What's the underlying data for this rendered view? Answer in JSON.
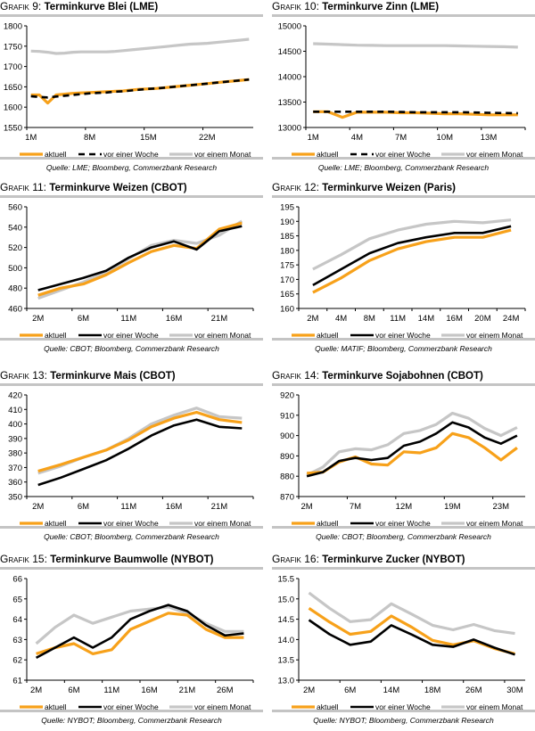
{
  "colors": {
    "aktuell": "#f7a11a",
    "vor_einer_woche": "#000000",
    "vor_einem_monat": "#c6c6c6",
    "rule": "#c4c4c4"
  },
  "chart_data": [
    {
      "id": "g9",
      "type": "line",
      "label": "Grafik 9:",
      "title": "Terminkurve Blei (LME)",
      "source": "Quelle: LME; Bloomberg, Commerzbank Research",
      "ylim": [
        1550,
        1800
      ],
      "yticks": [
        1550,
        1600,
        1650,
        1700,
        1750,
        1800
      ],
      "ytick_labels": [
        "1550",
        "1600",
        "1650",
        "1700",
        "1750",
        "1800"
      ],
      "tick_every": 7,
      "categories": [
        "1M",
        "",
        "",
        "",
        "",
        "",
        "",
        "8M",
        "",
        "",
        "",
        "",
        "",
        "",
        "15M",
        "",
        "",
        "",
        "",
        "",
        "",
        "22M",
        "",
        "",
        "",
        "",
        ""
      ],
      "week_dashed": true,
      "legend": "bottom",
      "series": [
        {
          "name": "aktuell",
          "values": [
            1630,
            1630,
            1610,
            1630,
            1632,
            1634,
            1635,
            1636,
            1637,
            1638,
            1639,
            1640,
            1642,
            1644,
            1645,
            1646,
            1648,
            1650,
            1652,
            1654,
            1656,
            1658,
            1660,
            1662,
            1664,
            1666,
            1668
          ]
        },
        {
          "name": "vor einer Woche",
          "values": [
            1627,
            1625,
            1624,
            1626,
            1628,
            1630,
            1632,
            1634,
            1635,
            1636,
            1638,
            1639,
            1641,
            1643,
            1645,
            1646,
            1648,
            1650,
            1652,
            1654,
            1656,
            1658,
            1660,
            1662,
            1664,
            1666,
            1668
          ]
        },
        {
          "name": "vor einem Monat",
          "values": [
            1738,
            1737,
            1735,
            1732,
            1733,
            1735,
            1736,
            1736,
            1736,
            1736,
            1737,
            1739,
            1741,
            1743,
            1745,
            1747,
            1749,
            1751,
            1753,
            1755,
            1756,
            1757,
            1759,
            1761,
            1763,
            1765,
            1767
          ]
        }
      ]
    },
    {
      "id": "g10",
      "type": "line",
      "label": "Grafik 10:",
      "title": "Terminkurve Zinn (LME)",
      "source": "Quelle: LME; Bloomberg, Commerzbank Research",
      "ylim": [
        13000,
        15000
      ],
      "yticks": [
        13000,
        13500,
        14000,
        14500,
        15000
      ],
      "ytick_labels": [
        "13000",
        "13500",
        "14000",
        "14500",
        "15000"
      ],
      "tick_every": 3,
      "categories": [
        "1M",
        "",
        "",
        "4M",
        "",
        "",
        "7M",
        "",
        "",
        "10M",
        "",
        "",
        "13M",
        "",
        ""
      ],
      "week_dashed": true,
      "legend": "bottom",
      "series": [
        {
          "name": "aktuell",
          "values": [
            13310,
            13310,
            13200,
            13300,
            13300,
            13300,
            13290,
            13290,
            13280,
            13270,
            13270,
            13260,
            13250,
            13250,
            13250
          ]
        },
        {
          "name": "vor einer Woche",
          "values": [
            13310,
            13310,
            13310,
            13310,
            13310,
            13310,
            13305,
            13300,
            13300,
            13300,
            13300,
            13295,
            13290,
            13285,
            13280
          ]
        },
        {
          "name": "vor einem Monat",
          "values": [
            14650,
            14640,
            14630,
            14620,
            14615,
            14610,
            14610,
            14610,
            14610,
            14610,
            14605,
            14600,
            14595,
            14590,
            14580
          ]
        }
      ]
    },
    {
      "id": "g11",
      "type": "line",
      "label": "Grafik 11:",
      "title": "Terminkurve Weizen (CBOT)",
      "source": "Quelle: CBOT; Bloomberg, Commerzbank Research",
      "ylim": [
        460,
        560
      ],
      "yticks": [
        460,
        480,
        500,
        520,
        540,
        560
      ],
      "ytick_labels": [
        "460",
        "480",
        "500",
        "520",
        "540",
        "560"
      ],
      "tick_every": 2,
      "categories": [
        "2M",
        "",
        "6M",
        "",
        "11M",
        "",
        "16M",
        "",
        "21M",
        ""
      ],
      "week_dashed": false,
      "legend": "bottom",
      "series": [
        {
          "name": "aktuell",
          "values": [
            473,
            480,
            484,
            493,
            505,
            516,
            522,
            519,
            538,
            544
          ]
        },
        {
          "name": "vor einer Woche",
          "values": [
            478,
            484,
            490,
            497,
            510,
            520,
            526,
            518,
            536,
            541
          ]
        },
        {
          "name": "vor einem Monat",
          "values": [
            470,
            478,
            486,
            495,
            509,
            522,
            527,
            524,
            532,
            546
          ]
        }
      ]
    },
    {
      "id": "g12",
      "type": "line",
      "label": "Grafik 12:",
      "title": "Terminkurve Weizen (Paris)",
      "source": "Quelle: MATIF; Bloomberg, Commerzbank Research",
      "ylim": [
        160,
        195
      ],
      "yticks": [
        160,
        165,
        170,
        175,
        180,
        185,
        190,
        195
      ],
      "ytick_labels": [
        "160",
        "165",
        "170",
        "175",
        "180",
        "185",
        "190",
        "195"
      ],
      "tick_every": 1,
      "categories": [
        "2M",
        "4M",
        "8M",
        "11M",
        "14M",
        "16M",
        "20M",
        "24M"
      ],
      "week_dashed": false,
      "legend": "bottom",
      "series": [
        {
          "name": "aktuell",
          "values": [
            165.5,
            170.5,
            176.5,
            180.5,
            183,
            184.5,
            184.5,
            187
          ]
        },
        {
          "name": "vor einer Woche",
          "values": [
            168,
            173.5,
            179,
            182.5,
            184.5,
            186,
            186,
            188.3
          ]
        },
        {
          "name": "vor einem Monat",
          "values": [
            173.5,
            178.5,
            184,
            187,
            189,
            190,
            189.5,
            190.5
          ]
        }
      ]
    },
    {
      "id": "g13",
      "type": "line",
      "label": "Grafik 13:",
      "title": "Terminkurve Mais (CBOT)",
      "source": "Quelle: CBOT; Bloomberg, Commerzbank Research",
      "ylim": [
        350,
        420
      ],
      "yticks": [
        350,
        360,
        370,
        380,
        390,
        400,
        410,
        420
      ],
      "ytick_labels": [
        "350",
        "360",
        "370",
        "380",
        "390",
        "400",
        "410",
        "420"
      ],
      "tick_every": 2,
      "categories": [
        "2M",
        "",
        "6M",
        "",
        "11M",
        "",
        "16M",
        "",
        "21M",
        ""
      ],
      "week_dashed": false,
      "legend": "bottom",
      "series": [
        {
          "name": "aktuell",
          "values": [
            367.5,
            372,
            377,
            382,
            389,
            398,
            404,
            408,
            403,
            401
          ]
        },
        {
          "name": "vor einer Woche",
          "values": [
            358,
            363,
            369,
            375,
            383,
            392,
            399,
            403,
            398,
            397
          ]
        },
        {
          "name": "vor einem Monat",
          "values": [
            366,
            371,
            377,
            382,
            390,
            400,
            406,
            411,
            405,
            404
          ]
        }
      ]
    },
    {
      "id": "g14",
      "type": "line",
      "label": "Grafik 14:",
      "title": "Terminkurve Sojabohnen (CBOT)",
      "source": "Quelle: CBOT; Bloomberg, Commerzbank Research",
      "ylim": [
        870,
        920
      ],
      "yticks": [
        870,
        880,
        890,
        900,
        910,
        920
      ],
      "ytick_labels": [
        "870",
        "880",
        "890",
        "900",
        "910",
        "920"
      ],
      "tick_every": 3,
      "categories": [
        "2M",
        "",
        "",
        "7M",
        "",
        "",
        "12M",
        "",
        "",
        "19M",
        "",
        "",
        "23M",
        ""
      ],
      "week_dashed": false,
      "legend": "bottom",
      "series": [
        {
          "name": "aktuell",
          "values": [
            881.5,
            882,
            887,
            889.5,
            886,
            885.5,
            892,
            891.5,
            894,
            901,
            899,
            894,
            888,
            894
          ]
        },
        {
          "name": "vor einer Woche",
          "values": [
            880,
            882,
            887.5,
            889,
            888,
            889,
            895,
            897,
            901,
            906.5,
            904,
            899,
            896,
            900
          ]
        },
        {
          "name": "vor einem Monat",
          "values": [
            880.5,
            884.5,
            892,
            893.5,
            893,
            895.5,
            901,
            902.5,
            905.5,
            911,
            908.5,
            903.5,
            900,
            904
          ]
        }
      ]
    },
    {
      "id": "g15",
      "type": "line",
      "label": "Grafik 15:",
      "title": "Terminkurve Baumwolle (NYBOT)",
      "source": "Quelle: NYBOT; Bloomberg, Commerzbank Research",
      "ylim": [
        61,
        66
      ],
      "yticks": [
        61,
        62,
        63,
        64,
        65,
        66
      ],
      "ytick_labels": [
        "61",
        "62",
        "63",
        "64",
        "65",
        "66"
      ],
      "tick_every": 2,
      "categories": [
        "2M",
        "",
        "6M",
        "",
        "11M",
        "",
        "16M",
        "",
        "21M",
        "",
        "26M",
        ""
      ],
      "week_dashed": false,
      "legend": "bottom",
      "series": [
        {
          "name": "aktuell",
          "values": [
            62.3,
            62.6,
            62.8,
            62.3,
            62.5,
            63.5,
            63.9,
            64.3,
            64.2,
            63.5,
            63.1,
            63.1
          ]
        },
        {
          "name": "vor einer Woche",
          "values": [
            62.1,
            62.6,
            63.1,
            62.6,
            63.1,
            64.0,
            64.4,
            64.7,
            64.4,
            63.7,
            63.2,
            63.3
          ]
        },
        {
          "name": "vor einem Monat",
          "values": [
            62.8,
            63.6,
            64.2,
            63.8,
            64.1,
            64.4,
            64.5,
            64.6,
            64.3,
            63.8,
            63.4,
            63.4
          ]
        }
      ]
    },
    {
      "id": "g16",
      "type": "line",
      "label": "Grafik 16:",
      "title": "Terminkurve Zucker (NYBOT)",
      "source": "Quelle: NYBOT; Bloomberg, Commerzbank Research",
      "ylim": [
        13.0,
        15.5
      ],
      "yticks": [
        13.0,
        13.5,
        14.0,
        14.5,
        15.0,
        15.5
      ],
      "ytick_labels": [
        "13.0",
        "13.5",
        "14.0",
        "14.5",
        "15.0",
        "15.5"
      ],
      "tick_every": 2,
      "categories": [
        "2M",
        "",
        "6M",
        "",
        "14M",
        "",
        "18M",
        "",
        "26M",
        "",
        "30M"
      ],
      "week_dashed": false,
      "legend": "bottom",
      "series": [
        {
          "name": "aktuell",
          "values": [
            14.77,
            14.43,
            14.13,
            14.2,
            14.58,
            14.3,
            13.98,
            13.87,
            13.97,
            13.78,
            13.65
          ]
        },
        {
          "name": "vor einer Woche",
          "values": [
            14.48,
            14.13,
            13.87,
            13.95,
            14.35,
            14.12,
            13.87,
            13.82,
            14.0,
            13.8,
            13.63
          ]
        },
        {
          "name": "vor einem Monat",
          "values": [
            15.15,
            14.77,
            14.44,
            14.49,
            14.88,
            14.62,
            14.35,
            14.24,
            14.37,
            14.22,
            14.15
          ]
        }
      ]
    }
  ]
}
